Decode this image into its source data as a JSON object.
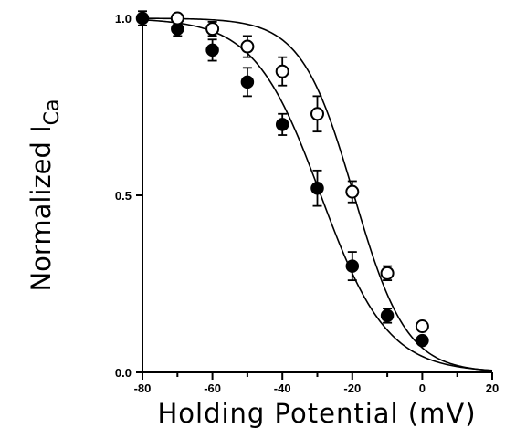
{
  "chart_data": {
    "type": "scatter",
    "title": "",
    "xlabel": "Holding Potential (mV)",
    "ylabel_main": "Normalized I",
    "ylabel_sub": "Ca",
    "xlim": [
      -80,
      20
    ],
    "ylim": [
      0.0,
      1.0
    ],
    "x_ticks": [
      -80,
      -60,
      -40,
      -20,
      0,
      20
    ],
    "x_tick_labels": [
      "-80",
      "-60",
      "-40",
      "-20",
      "0",
      "20"
    ],
    "x_minor_ticks": [
      -70,
      -50,
      -30,
      -10,
      10
    ],
    "y_ticks": [
      0.0,
      0.5,
      1.0
    ],
    "y_tick_labels": [
      "0.0",
      "0.5",
      "1.0"
    ],
    "grid": false,
    "series": [
      {
        "marker": "filled-circle",
        "x": [
          -80,
          -70,
          -60,
          -50,
          -40,
          -30,
          -20,
          -10,
          0
        ],
        "y": [
          1.0,
          0.97,
          0.91,
          0.82,
          0.7,
          0.52,
          0.3,
          0.16,
          0.09
        ],
        "error": [
          0.02,
          0.02,
          0.03,
          0.04,
          0.03,
          0.05,
          0.04,
          0.02,
          0.01
        ],
        "fit": {
          "v_half": -29,
          "k": 9.5
        }
      },
      {
        "marker": "open-circle",
        "x": [
          -70,
          -60,
          -50,
          -40,
          -30,
          -20,
          -10,
          0
        ],
        "y": [
          1.0,
          0.97,
          0.92,
          0.85,
          0.73,
          0.51,
          0.28,
          0.13
        ],
        "error": [
          0.01,
          0.02,
          0.03,
          0.04,
          0.05,
          0.03,
          0.02,
          0.01
        ],
        "fit": {
          "v_half": -19.5,
          "k": 7.5
        }
      }
    ]
  }
}
